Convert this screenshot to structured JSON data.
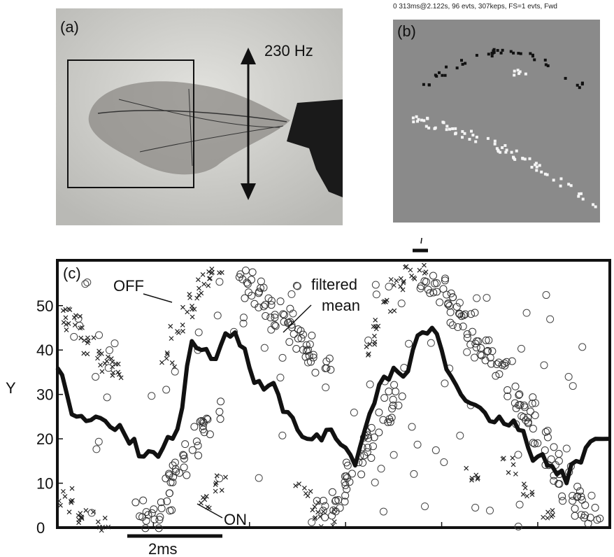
{
  "panel_a": {
    "label": "(a)",
    "frequency_label": "230 Hz"
  },
  "panel_b": {
    "label": "(b)",
    "header": "0 313ms@2.122s, 96 evts, 307keps, FS=1 evts,  Fwd"
  },
  "panel_c": {
    "label": "(c)",
    "annotations": {
      "off": "OFF",
      "on": "ON",
      "filtered": "filtered",
      "mean": "mean"
    },
    "scale_bar": "2ms"
  },
  "chart_data": {
    "type": "scatter",
    "ylabel": "Y",
    "ylim": [
      0,
      58
    ],
    "yticks": [
      "0",
      "10",
      "20",
      "30",
      "40",
      "50"
    ],
    "xlim": [
      0,
      11.5
    ],
    "series": [
      {
        "name": "OFF",
        "marker": "x",
        "description_in_figure": "OFF events"
      },
      {
        "name": "ON",
        "marker": "o",
        "description_in_figure": "ON events"
      },
      {
        "name": "filtered mean",
        "marker": "thick line"
      }
    ],
    "filtered_mean": {
      "x": [
        0,
        0.2,
        0.4,
        0.6,
        0.8,
        1.0,
        1.2,
        1.4,
        1.6,
        1.8,
        2.0,
        2.2,
        2.4,
        2.6,
        2.8,
        3.0,
        3.2,
        3.4,
        3.6,
        3.8,
        4.0,
        4.2,
        4.4,
        4.6,
        4.8,
        5.0,
        5.2,
        5.4,
        5.6,
        5.8,
        6.0,
        6.2,
        6.4,
        6.6,
        6.8,
        7.0,
        7.2,
        7.4,
        7.6,
        7.8,
        8.0,
        8.2,
        8.4,
        8.6,
        8.8,
        9.0,
        9.2,
        9.4,
        9.6,
        9.8,
        10.0,
        10.2,
        10.4,
        10.6,
        10.8,
        11.0,
        11.2,
        11.5
      ],
      "y": [
        36,
        30,
        25,
        24,
        25,
        24,
        22,
        21,
        20,
        16,
        17,
        18,
        20,
        27,
        42,
        40,
        38,
        41,
        43,
        41,
        36,
        33,
        32,
        30,
        26,
        22,
        20,
        21,
        22,
        20,
        18,
        14,
        22,
        28,
        34,
        36,
        34,
        40,
        44,
        45,
        40,
        34,
        30,
        28,
        27,
        24,
        25,
        23,
        22,
        18,
        16,
        14,
        12,
        10,
        15,
        18,
        20,
        20
      ]
    },
    "off_clusters": [
      {
        "x": [
          0.1,
          0.3,
          0.5,
          0.7,
          0.9,
          1.1,
          1.3
        ],
        "y": [
          48,
          46,
          44,
          41,
          38,
          37,
          35
        ]
      },
      {
        "x": [
          2.3,
          2.5,
          2.7,
          2.9,
          3.1,
          3.3
        ],
        "y": [
          38,
          44,
          49,
          53,
          56,
          57
        ]
      },
      {
        "x": [
          6.5,
          6.7,
          6.9,
          7.1,
          7.3,
          7.5
        ],
        "y": [
          40,
          45,
          50,
          54,
          57,
          58
        ]
      },
      {
        "x": [
          0.2,
          0.4,
          0.6,
          1.0,
          3.0,
          3.4,
          5.1,
          5.3,
          5.6,
          8.6,
          9.4,
          9.8,
          10.2
        ],
        "y": [
          7,
          4,
          2,
          1,
          6,
          10,
          8,
          4,
          2,
          12,
          14,
          8,
          3
        ]
      }
    ],
    "on_clusters": [
      {
        "x": [
          3.9,
          4.1,
          4.3,
          4.5,
          4.7,
          4.9,
          5.1,
          5.3,
          5.5
        ],
        "y": [
          56,
          54,
          52,
          49,
          47,
          44,
          42,
          39,
          37
        ]
      },
      {
        "x": [
          7.7,
          7.9,
          8.1,
          8.3,
          8.5,
          8.7,
          8.9,
          9.1,
          9.3
        ],
        "y": [
          56,
          54,
          51,
          48,
          46,
          43,
          40,
          38,
          36
        ]
      },
      {
        "x": [
          1.8,
          2.0,
          2.2,
          2.4,
          2.6,
          2.8,
          3.0,
          3.2
        ],
        "y": [
          4,
          2,
          6,
          10,
          14,
          18,
          22,
          26
        ]
      },
      {
        "x": [
          5.6,
          5.8,
          6.0,
          6.2,
          6.4,
          6.6,
          6.8,
          7.0
        ],
        "y": [
          4,
          6,
          10,
          14,
          18,
          22,
          26,
          30
        ]
      },
      {
        "x": [
          9.5,
          9.7,
          9.9,
          10.1,
          10.3,
          10.5,
          10.7,
          10.9,
          11.1
        ],
        "y": [
          30,
          27,
          24,
          20,
          16,
          12,
          8,
          5,
          3
        ]
      }
    ]
  }
}
